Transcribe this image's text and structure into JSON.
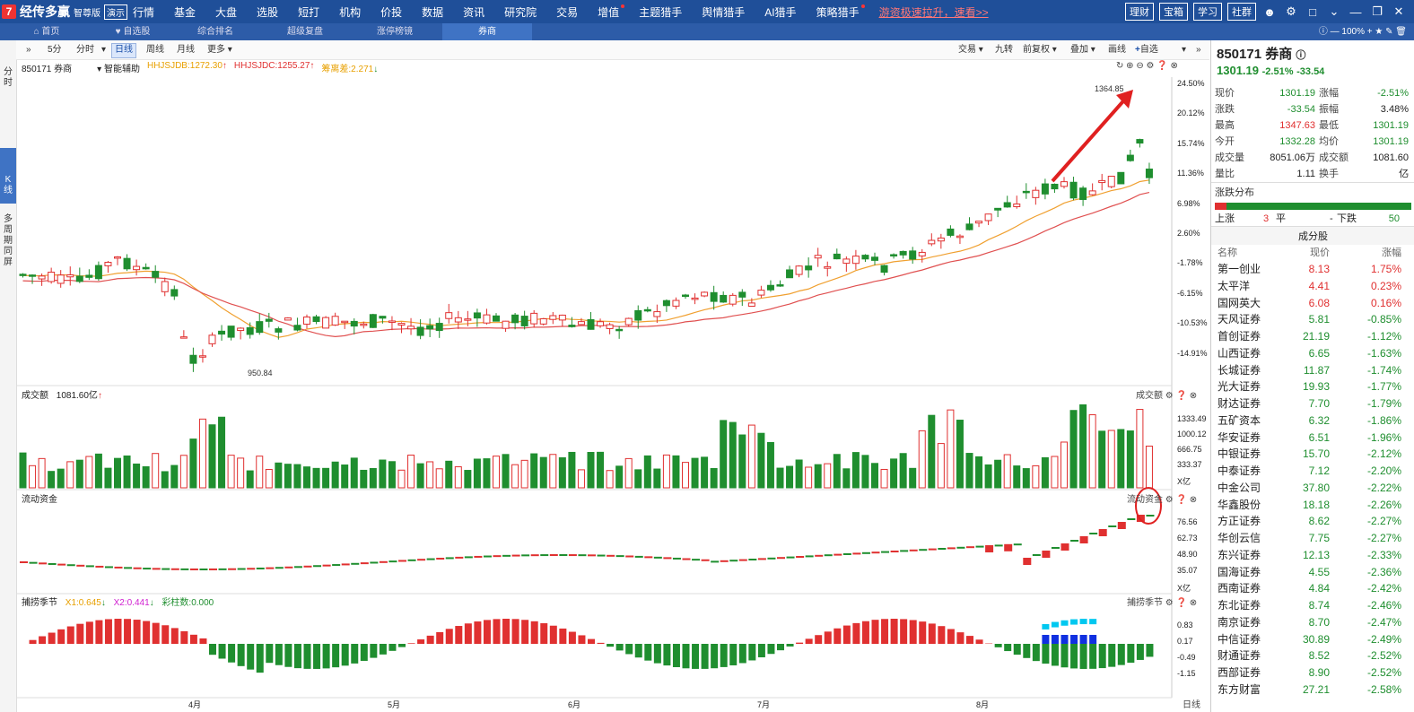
{
  "app": {
    "name": "经传多赢",
    "edition": "智尊版",
    "badge": "演示"
  },
  "menu": [
    "行情",
    "基金",
    "大盘",
    "选股",
    "短打",
    "机构",
    "价投",
    "数据",
    "资讯",
    "研究院",
    "交易",
    "增值",
    "主题猎手",
    "舆情猎手",
    "AI猎手",
    "策略猎手"
  ],
  "promo": "游资极速拉升，速看>>",
  "top_buttons": [
    "理财",
    "宝箱",
    "学习",
    "社群"
  ],
  "tabs": [
    "首页",
    "自选股",
    "综合排名",
    "超级复盘",
    "涨停榜镜",
    "券商"
  ],
  "zoom": "100%",
  "left_tabs": [
    [
      "分",
      "时"
    ],
    [
      "K",
      "线"
    ],
    [
      "多",
      "周",
      "期",
      "同",
      "屏"
    ]
  ],
  "toolbar": {
    "periods": [
      "5分",
      "分时",
      "日线",
      "周线",
      "月线",
      "更多"
    ],
    "right": [
      "交易",
      "九转",
      "前复权",
      "叠加",
      "画线",
      "自选"
    ]
  },
  "chart_info": {
    "code_name": "850171 券商",
    "aux": "智能辅助",
    "ma1": "HHJSJDB:1272.30",
    "ma2": "HHJSJDC:1255.27",
    "ma3": "筹离差:2.271",
    "high_label": "1364.85",
    "low_label": "950.84"
  },
  "price_axis": [
    "24.50%",
    "20.12%",
    "15.74%",
    "11.36%",
    "6.98%",
    "2.60%",
    "-1.78%",
    "-6.15%",
    "-10.53%",
    "-14.91%"
  ],
  "vol": {
    "title": "成交额",
    "value": "1081.60亿",
    "axis": [
      "1333.49",
      "1000.12",
      "666.75",
      "333.37",
      "X亿"
    ],
    "tag": "成交额"
  },
  "flow": {
    "title": "流动资金",
    "axis": [
      "76.56",
      "62.73",
      "48.90",
      "35.07",
      "X亿"
    ],
    "tag": "流动资金"
  },
  "season": {
    "title": "捕捞季节",
    "x1": "X1:0.645",
    "x2": "X2:0.441",
    "bars": "彩柱数:0.000",
    "axis": [
      "0.83",
      "0.17",
      "-0.49",
      "-1.15"
    ],
    "tag": "捕捞季节"
  },
  "months": [
    "4月",
    "5月",
    "6月",
    "7月",
    "8月"
  ],
  "bottom_period": "日线",
  "quote": {
    "title": "850171 券商",
    "price": "1301.19",
    "chg_pct": "-2.51%",
    "chg": "-33.54",
    "rows": [
      [
        "现价",
        "1301.19",
        "涨幅",
        "-2.51%"
      ],
      [
        "涨跌",
        "-33.54",
        "振幅",
        "3.48%"
      ],
      [
        "最高",
        "1347.63",
        "最低",
        "1301.19"
      ],
      [
        "今开",
        "1332.28",
        "均价",
        "1301.19"
      ],
      [
        "成交量",
        "8051.06万",
        "成交额",
        "1081.60亿"
      ],
      [
        "量比",
        "1.11",
        "换手",
        "-"
      ]
    ]
  },
  "dist": {
    "title": "涨跌分布",
    "up_label": "上涨",
    "up": "3",
    "flat_label": "平",
    "flat": "-",
    "down_label": "下跌",
    "down": "50",
    "up_ratio": 0.06
  },
  "constituents": {
    "title": "成分股",
    "headers": [
      "名称",
      "现价",
      "涨幅"
    ],
    "rows": [
      [
        "第一创业",
        "8.13",
        "1.75%"
      ],
      [
        "太平洋",
        "4.41",
        "0.23%"
      ],
      [
        "国网英大",
        "6.08",
        "0.16%"
      ],
      [
        "天风证券",
        "5.81",
        "-0.85%"
      ],
      [
        "首创证券",
        "21.19",
        "-1.12%"
      ],
      [
        "山西证券",
        "6.65",
        "-1.63%"
      ],
      [
        "长城证券",
        "11.87",
        "-1.74%"
      ],
      [
        "光大证券",
        "19.93",
        "-1.77%"
      ],
      [
        "财达证券",
        "7.70",
        "-1.79%"
      ],
      [
        "五矿资本",
        "6.32",
        "-1.86%"
      ],
      [
        "华安证券",
        "6.51",
        "-1.96%"
      ],
      [
        "中银证券",
        "15.70",
        "-2.12%"
      ],
      [
        "中泰证券",
        "7.12",
        "-2.20%"
      ],
      [
        "中金公司",
        "37.80",
        "-2.22%"
      ],
      [
        "华鑫股份",
        "18.18",
        "-2.26%"
      ],
      [
        "方正证券",
        "8.62",
        "-2.27%"
      ],
      [
        "华创云信",
        "7.75",
        "-2.27%"
      ],
      [
        "东兴证券",
        "12.13",
        "-2.33%"
      ],
      [
        "国海证券",
        "4.55",
        "-2.36%"
      ],
      [
        "西南证券",
        "4.84",
        "-2.42%"
      ],
      [
        "东北证券",
        "8.74",
        "-2.46%"
      ],
      [
        "南京证券",
        "8.70",
        "-2.47%"
      ],
      [
        "中信证券",
        "30.89",
        "-2.49%"
      ],
      [
        "财通证券",
        "8.52",
        "-2.52%"
      ],
      [
        "西部证券",
        "8.90",
        "-2.52%"
      ],
      [
        "东方财富",
        "27.21",
        "-2.58%"
      ]
    ]
  },
  "colors": {
    "up": "#e03030",
    "down": "#1f8e2f",
    "accent": "#1f4f99"
  }
}
